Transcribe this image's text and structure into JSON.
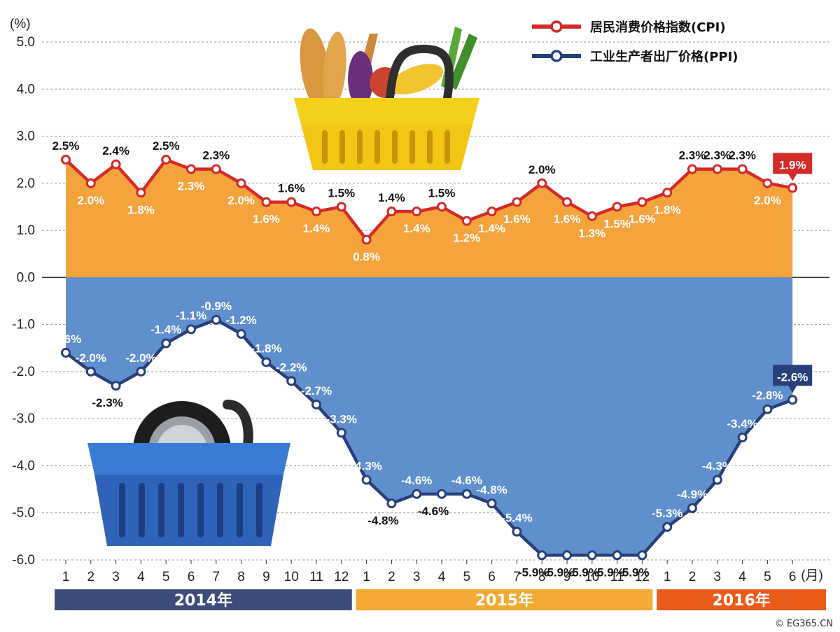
{
  "chart_data": {
    "type": "line",
    "ylabel": "(%)",
    "ylim": [
      -6.0,
      5.0
    ],
    "yticks": [
      "5.0",
      "4.0",
      "3.0",
      "2.0",
      "1.0",
      "0.0",
      "-1.0",
      "-2.0",
      "-3.0",
      "-4.0",
      "-5.0",
      "-6.0"
    ],
    "yticks_values": [
      5,
      4,
      3,
      2,
      1,
      0,
      -1,
      -2,
      -3,
      -4,
      -5,
      -6
    ],
    "x_unit": "(月)",
    "categories": [
      "1",
      "2",
      "3",
      "4",
      "5",
      "6",
      "7",
      "8",
      "9",
      "10",
      "11",
      "12",
      "1",
      "2",
      "3",
      "4",
      "5",
      "6",
      "7",
      "8",
      "9",
      "10",
      "11",
      "12",
      "1",
      "2",
      "3",
      "4",
      "5",
      "6"
    ],
    "years": [
      {
        "label": "2014年",
        "start": 0,
        "end": 11,
        "color": "#3d4c7a"
      },
      {
        "label": "2015年",
        "start": 12,
        "end": 23,
        "color": "#f3a933"
      },
      {
        "label": "2016年",
        "start": 24,
        "end": 29,
        "color": "#ea5a18"
      }
    ],
    "series": [
      {
        "name": "居民消费价格指数(CPI)",
        "color": "#d42a28",
        "fill": "#f4a33d",
        "values": [
          2.5,
          2.0,
          2.4,
          1.8,
          2.5,
          2.3,
          2.3,
          2.0,
          1.6,
          1.6,
          1.4,
          1.5,
          0.8,
          1.4,
          1.4,
          1.5,
          1.2,
          1.4,
          1.6,
          2.0,
          1.6,
          1.3,
          1.5,
          1.6,
          1.8,
          2.3,
          2.3,
          2.3,
          2.0,
          1.9
        ],
        "labels": [
          "2.5%",
          "2.0%",
          "2.4%",
          "1.8%",
          "2.5%",
          "2.3%",
          "2.3%",
          "2.0%",
          "1.6%",
          "1.6%",
          "1.4%",
          "1.5%",
          "0.8%",
          "1.4%",
          "1.4%",
          "1.5%",
          "1.2%",
          "1.4%",
          "1.6%",
          "2.0%",
          "1.6%",
          "1.3%",
          "1.5%",
          "1.6%",
          "1.8%",
          "2.3%",
          "2.3%",
          "2.3%",
          "2.0%",
          "1.9%"
        ]
      },
      {
        "name": "工业生产者出厂价格(PPI)",
        "color": "#27407a",
        "fill": "#5f8fcc",
        "values": [
          -1.6,
          -2.0,
          -2.3,
          -2.0,
          -1.4,
          -1.1,
          -0.9,
          -1.2,
          -1.8,
          -2.2,
          -2.7,
          -3.3,
          -4.3,
          -4.8,
          -4.6,
          -4.6,
          -4.6,
          -4.8,
          -5.4,
          -5.9,
          -5.9,
          -5.9,
          -5.9,
          -5.9,
          -5.3,
          -4.9,
          -4.3,
          -3.4,
          -2.8,
          -2.6
        ],
        "labels": [
          "-1.6%",
          "-2.0%",
          "-2.3%",
          "-2.0%",
          "-1.4%",
          "-1.1%",
          "-0.9%",
          "-1.2%",
          "-1.8%",
          "-2.2%",
          "-2.7%",
          "-3.3%",
          "-4.3%",
          "-4.8%",
          "-4.6%",
          "-4.6%",
          "-4.6%",
          "-4.8%",
          "-5.4%",
          "-5.9%",
          "-5.9%",
          "-5.9%",
          "-5.9%",
          "-5.9%",
          "-5.3%",
          "-4.9%",
          "-4.3%",
          "-3.4%",
          "-2.8%",
          "-2.6%"
        ]
      }
    ],
    "legend_position": "top-right",
    "grid": true
  },
  "credit": "© EG365.CN",
  "icons": [
    "grocery-basket-icon",
    "tire-basket-icon"
  ]
}
